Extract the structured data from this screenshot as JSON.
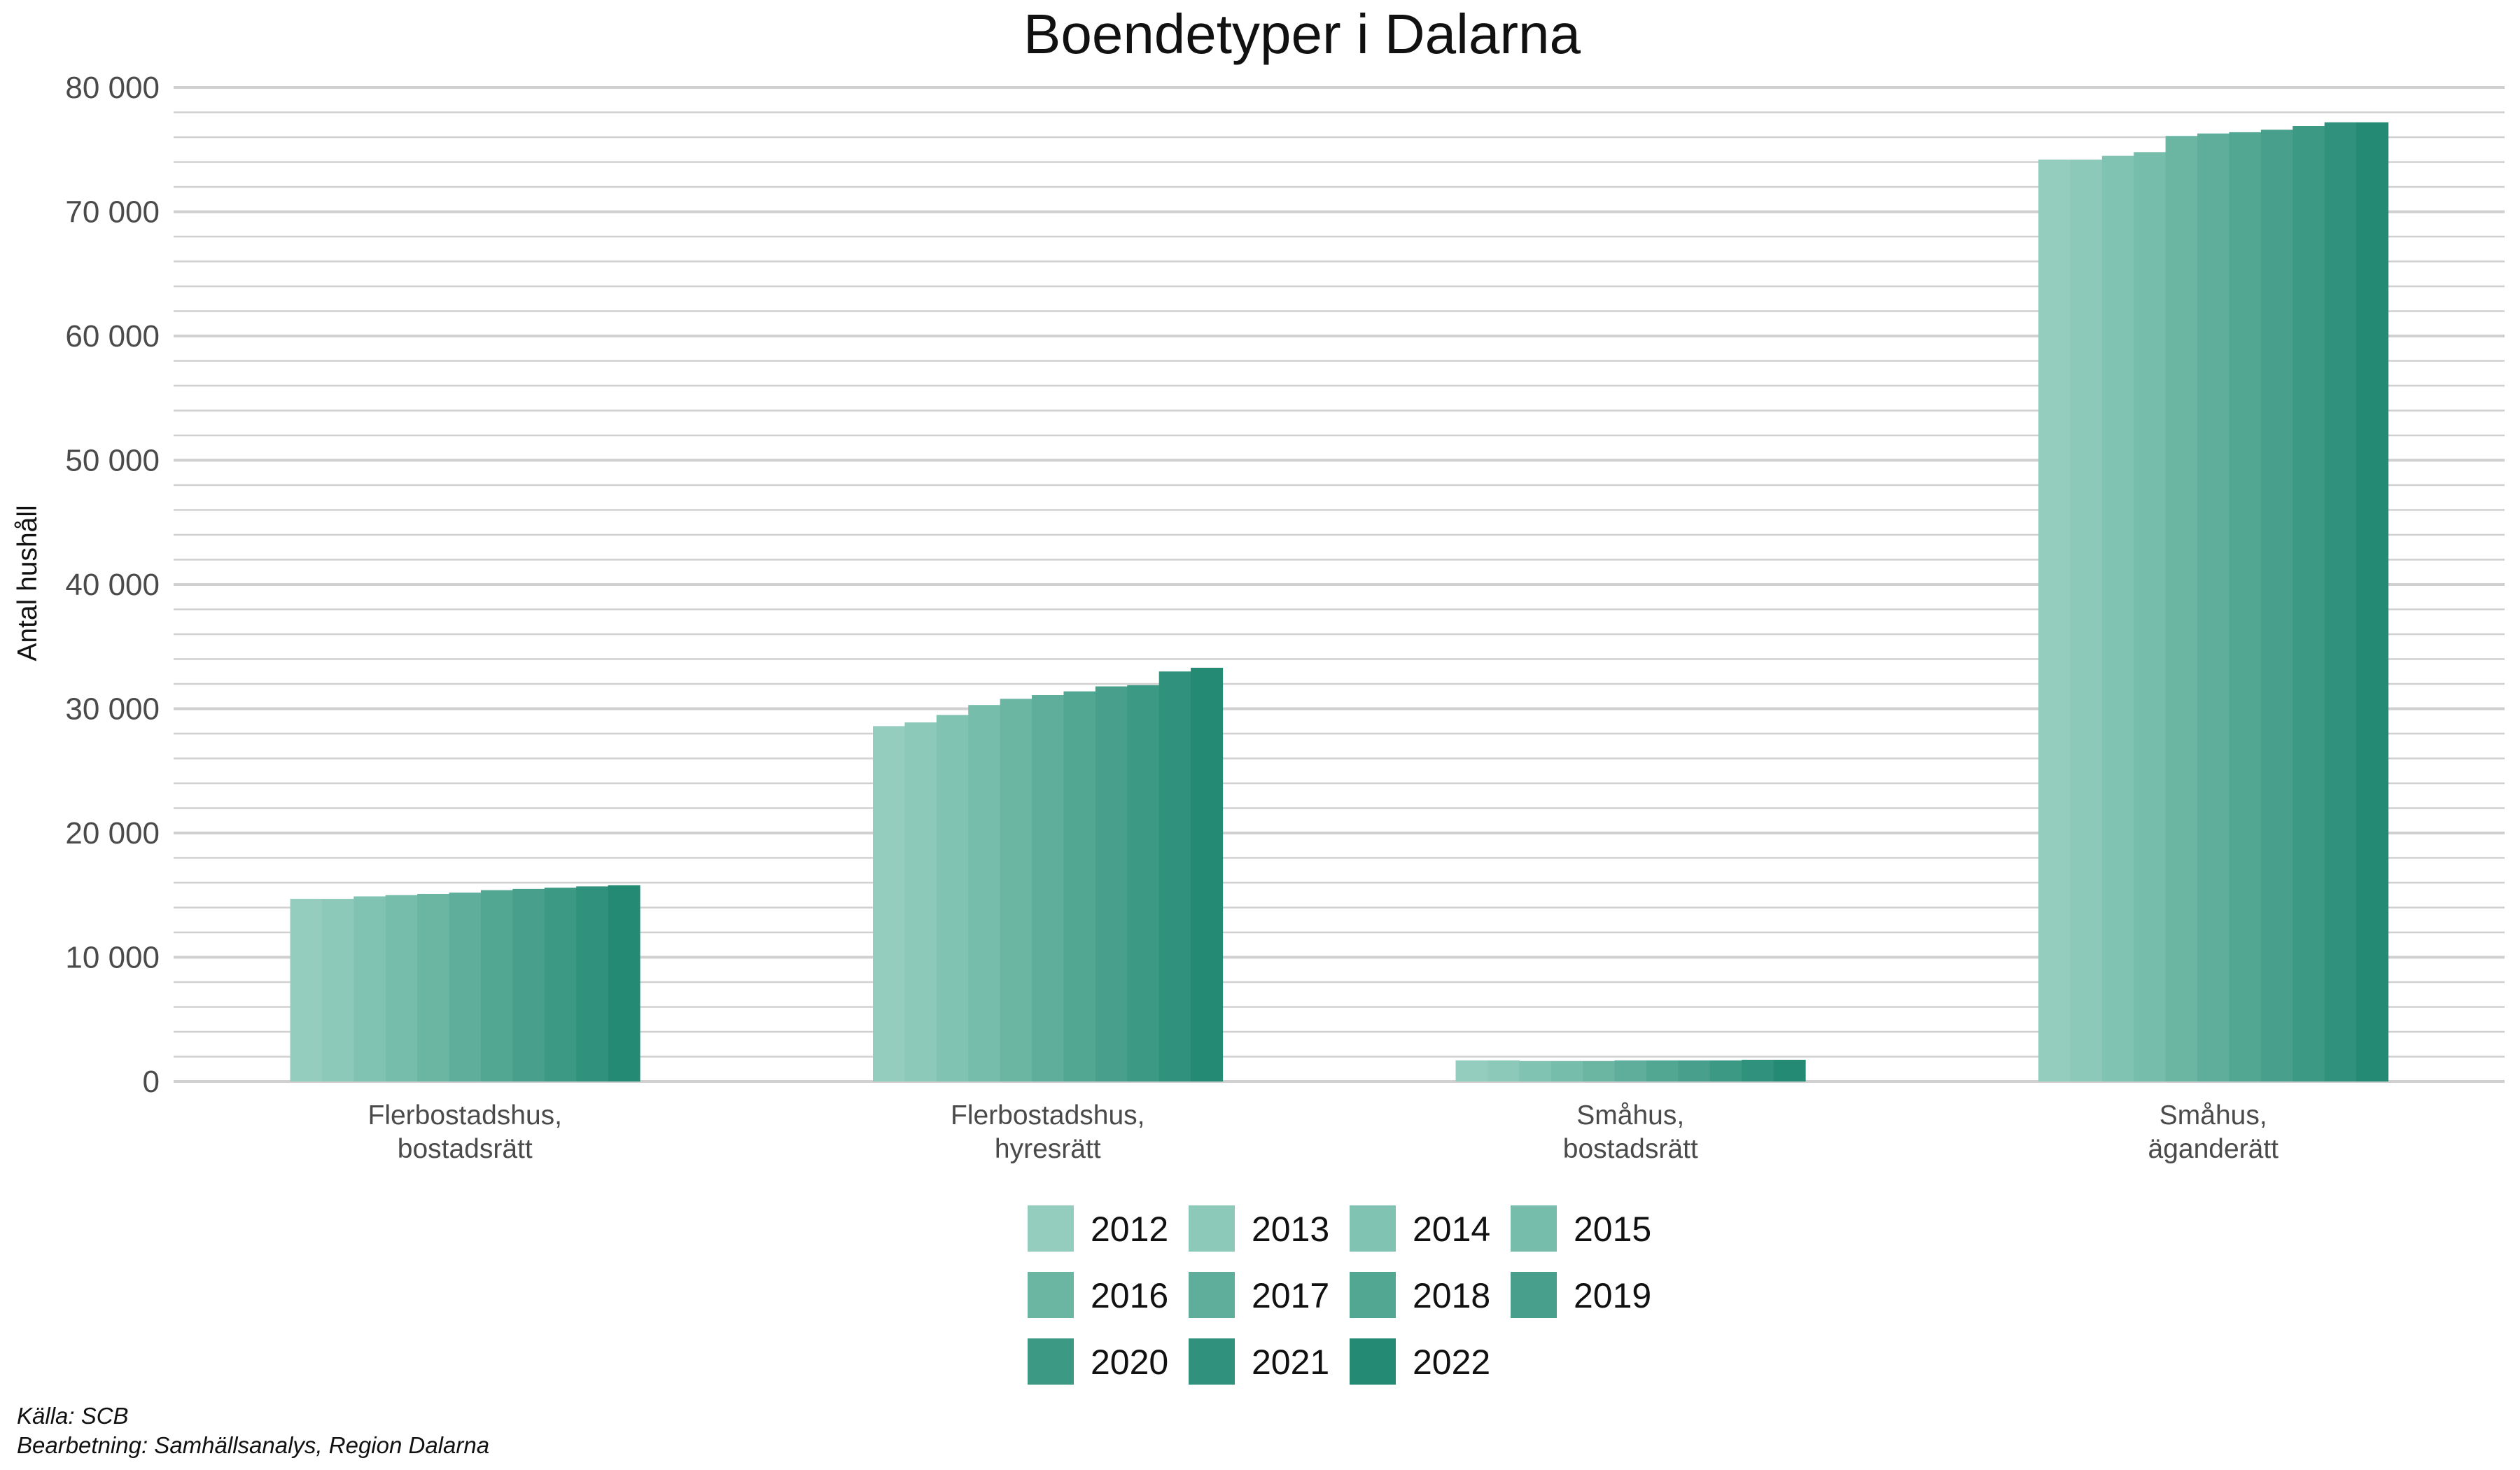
{
  "chart_data": {
    "type": "bar",
    "title": "Boendetyper i Dalarna",
    "xlabel": "",
    "ylabel": "Antal hushåll",
    "ylim": [
      0,
      80000
    ],
    "y_ticks": [
      0,
      10000,
      20000,
      30000,
      40000,
      50000,
      60000,
      70000,
      80000
    ],
    "y_tick_labels": [
      "0",
      "10 000",
      "20 000",
      "30 000",
      "40 000",
      "50 000",
      "60 000",
      "70 000",
      "80 000"
    ],
    "grid": true,
    "legend_position": "bottom",
    "categories": [
      [
        "Flerbostadshus,",
        "bostadsrätt"
      ],
      [
        "Flerbostadshus,",
        "hyresrätt"
      ],
      [
        "Småhus,",
        "bostadsrätt"
      ],
      [
        "Småhus,",
        "äganderätt"
      ]
    ],
    "series": [
      {
        "name": "2012",
        "color": "#94cdbe",
        "values": [
          14700,
          28600,
          1700,
          74200
        ]
      },
      {
        "name": "2013",
        "color": "#8cc9b9",
        "values": [
          14700,
          28900,
          1700,
          74200
        ]
      },
      {
        "name": "2014",
        "color": "#81c3b3",
        "values": [
          14900,
          29500,
          1650,
          74500
        ]
      },
      {
        "name": "2015",
        "color": "#77bdab",
        "values": [
          15000,
          30300,
          1650,
          74800
        ]
      },
      {
        "name": "2016",
        "color": "#6bb5a3",
        "values": [
          15100,
          30800,
          1650,
          76100
        ]
      },
      {
        "name": "2017",
        "color": "#5fae9c",
        "values": [
          15200,
          31100,
          1700,
          76300
        ]
      },
      {
        "name": "2018",
        "color": "#52a793",
        "values": [
          15400,
          31400,
          1700,
          76400
        ]
      },
      {
        "name": "2019",
        "color": "#48a08c",
        "values": [
          15500,
          31800,
          1700,
          76600
        ]
      },
      {
        "name": "2020",
        "color": "#3c9984",
        "values": [
          15600,
          31900,
          1700,
          76900
        ]
      },
      {
        "name": "2021",
        "color": "#30927c",
        "values": [
          15700,
          33000,
          1750,
          77200
        ]
      },
      {
        "name": "2022",
        "color": "#248a74",
        "values": [
          15800,
          33300,
          1750,
          77200
        ]
      }
    ]
  },
  "caption": {
    "source": "Källa: SCB",
    "processing": "Bearbetning: Samhällsanalys, Region Dalarna"
  }
}
